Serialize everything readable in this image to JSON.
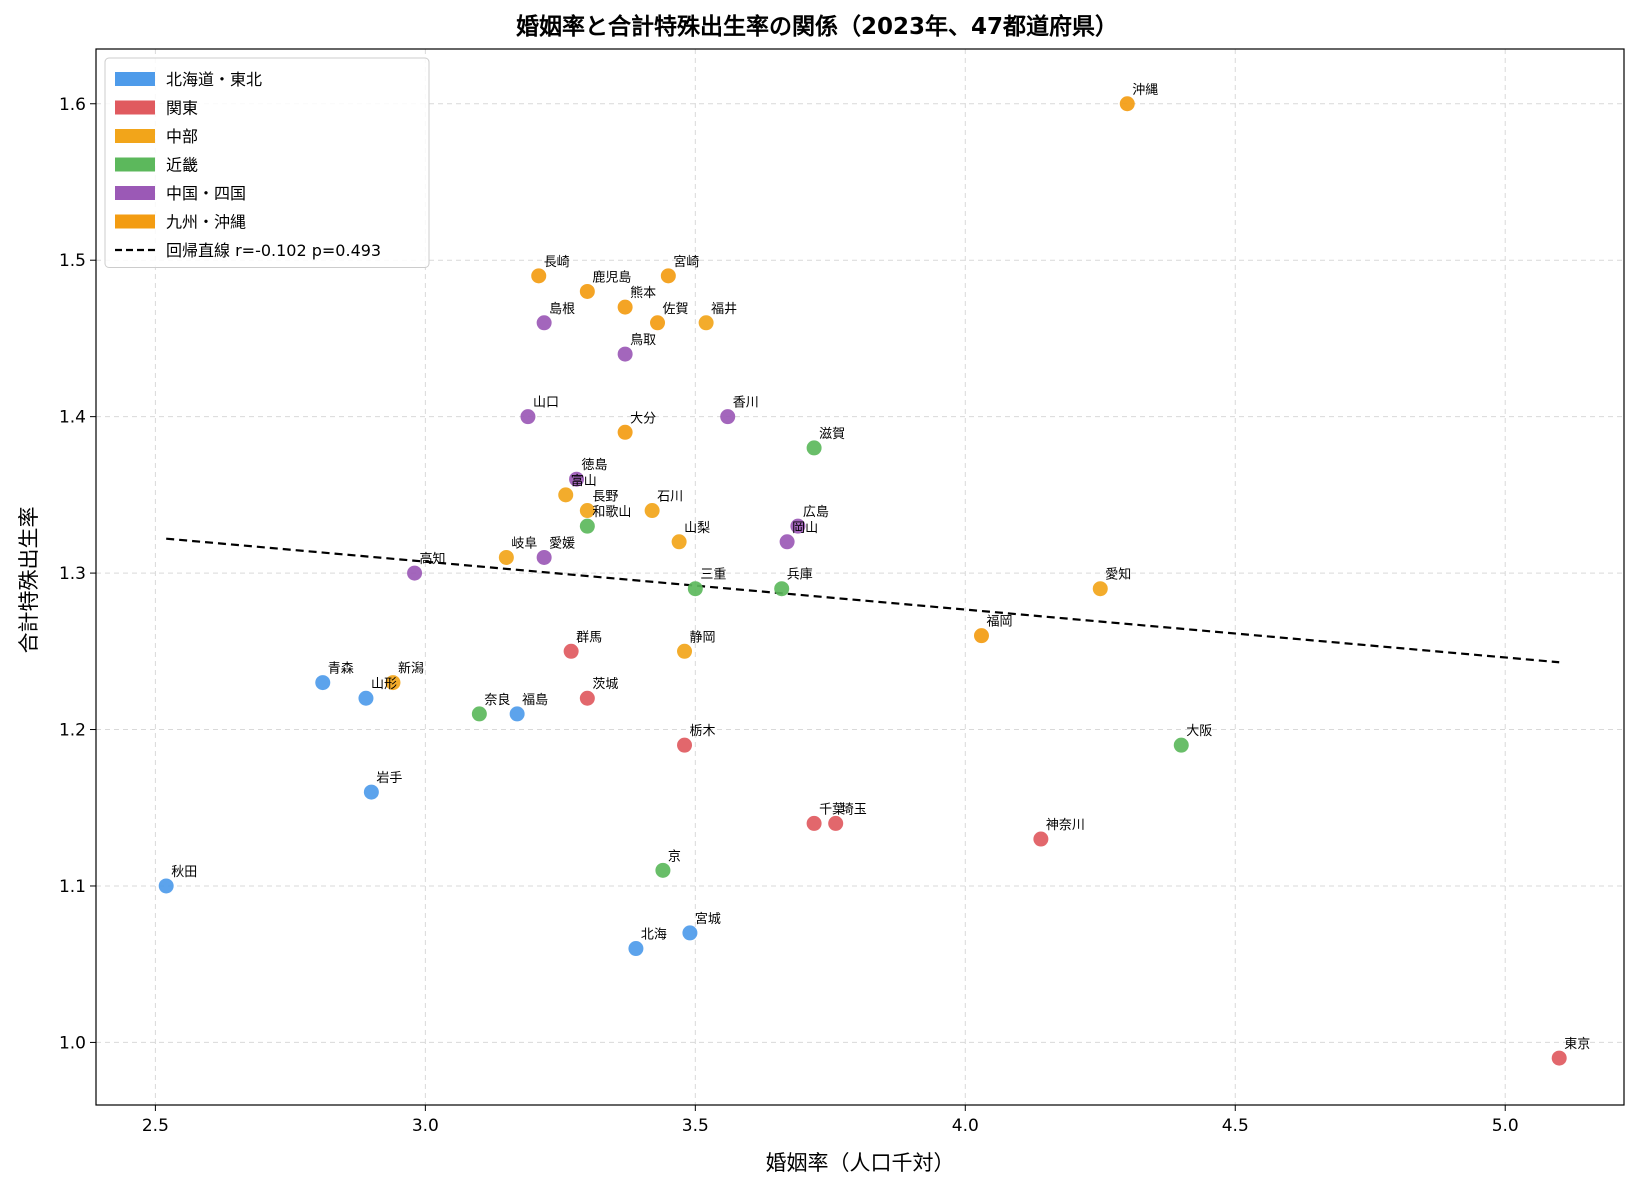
{
  "chart_data": {
    "type": "scatter",
    "title": "婚姻率と合計特殊出生率の関係（2023年、47都道府県）",
    "xlabel": "婚姻率（人口千対）",
    "ylabel": "合計特殊出生率",
    "xlim": [
      2.39,
      5.22
    ],
    "ylim": [
      0.96,
      1.635
    ],
    "xticks": [
      2.5,
      3.0,
      3.5,
      4.0,
      4.5,
      5.0
    ],
    "yticks": [
      1.0,
      1.1,
      1.2,
      1.3,
      1.4,
      1.5,
      1.6
    ],
    "xtick_labels": [
      "2.5",
      "3.0",
      "3.5",
      "4.0",
      "4.5",
      "5.0"
    ],
    "ytick_labels": [
      "1.0",
      "1.1",
      "1.2",
      "1.3",
      "1.4",
      "1.5",
      "1.6"
    ],
    "grid": true,
    "legend_position": "top-left",
    "regions": [
      {
        "key": "hokkaido_tohoku",
        "name": "北海道・東北",
        "color": "#4e9bea"
      },
      {
        "key": "kanto",
        "name": "関東",
        "color": "#e05a5f"
      },
      {
        "key": "chubu",
        "name": "中部",
        "color": "#f2a51a"
      },
      {
        "key": "kinki",
        "name": "近畿",
        "color": "#5cb85c"
      },
      {
        "key": "chugoku_shikoku",
        "name": "中国・四国",
        "color": "#9b59b6"
      },
      {
        "key": "kyushu_okinawa",
        "name": "九州・沖縄",
        "color": "#f39c12"
      }
    ],
    "regression": {
      "label": "回帰直線 r=-0.102  p=0.493",
      "x": [
        2.52,
        5.1
      ],
      "y": [
        1.322,
        1.243
      ]
    },
    "points": [
      {
        "label": "北海",
        "x": 3.39,
        "y": 1.06,
        "region": "hokkaido_tohoku"
      },
      {
        "label": "青森",
        "x": 2.81,
        "y": 1.23,
        "region": "hokkaido_tohoku"
      },
      {
        "label": "岩手",
        "x": 2.9,
        "y": 1.16,
        "region": "hokkaido_tohoku"
      },
      {
        "label": "宮城",
        "x": 3.49,
        "y": 1.07,
        "region": "hokkaido_tohoku"
      },
      {
        "label": "秋田",
        "x": 2.52,
        "y": 1.1,
        "region": "hokkaido_tohoku"
      },
      {
        "label": "山形",
        "x": 2.89,
        "y": 1.22,
        "region": "hokkaido_tohoku"
      },
      {
        "label": "福島",
        "x": 3.17,
        "y": 1.21,
        "region": "hokkaido_tohoku"
      },
      {
        "label": "茨城",
        "x": 3.3,
        "y": 1.22,
        "region": "kanto"
      },
      {
        "label": "栃木",
        "x": 3.48,
        "y": 1.19,
        "region": "kanto"
      },
      {
        "label": "群馬",
        "x": 3.27,
        "y": 1.25,
        "region": "kanto"
      },
      {
        "label": "埼玉",
        "x": 3.76,
        "y": 1.14,
        "region": "kanto"
      },
      {
        "label": "千葉",
        "x": 3.72,
        "y": 1.14,
        "region": "kanto"
      },
      {
        "label": "東京",
        "x": 5.1,
        "y": 0.99,
        "region": "kanto"
      },
      {
        "label": "神奈川",
        "x": 4.14,
        "y": 1.13,
        "region": "kanto"
      },
      {
        "label": "新潟",
        "x": 2.94,
        "y": 1.23,
        "region": "chubu"
      },
      {
        "label": "富山",
        "x": 3.26,
        "y": 1.35,
        "region": "chubu"
      },
      {
        "label": "石川",
        "x": 3.42,
        "y": 1.34,
        "region": "chubu"
      },
      {
        "label": "福井",
        "x": 3.52,
        "y": 1.46,
        "region": "chubu"
      },
      {
        "label": "山梨",
        "x": 3.47,
        "y": 1.32,
        "region": "chubu"
      },
      {
        "label": "長野",
        "x": 3.3,
        "y": 1.34,
        "region": "chubu"
      },
      {
        "label": "岐阜",
        "x": 3.15,
        "y": 1.31,
        "region": "chubu"
      },
      {
        "label": "静岡",
        "x": 3.48,
        "y": 1.25,
        "region": "chubu"
      },
      {
        "label": "愛知",
        "x": 4.25,
        "y": 1.29,
        "region": "chubu"
      },
      {
        "label": "三重",
        "x": 3.5,
        "y": 1.29,
        "region": "kinki"
      },
      {
        "label": "滋賀",
        "x": 3.72,
        "y": 1.38,
        "region": "kinki"
      },
      {
        "label": "京",
        "x": 3.44,
        "y": 1.11,
        "region": "kinki"
      },
      {
        "label": "大阪",
        "x": 4.4,
        "y": 1.19,
        "region": "kinki"
      },
      {
        "label": "兵庫",
        "x": 3.66,
        "y": 1.29,
        "region": "kinki"
      },
      {
        "label": "奈良",
        "x": 3.1,
        "y": 1.21,
        "region": "kinki"
      },
      {
        "label": "和歌山",
        "x": 3.3,
        "y": 1.33,
        "region": "kinki"
      },
      {
        "label": "鳥取",
        "x": 3.37,
        "y": 1.44,
        "region": "chugoku_shikoku"
      },
      {
        "label": "島根",
        "x": 3.22,
        "y": 1.46,
        "region": "chugoku_shikoku"
      },
      {
        "label": "岡山",
        "x": 3.67,
        "y": 1.32,
        "region": "chugoku_shikoku"
      },
      {
        "label": "広島",
        "x": 3.69,
        "y": 1.33,
        "region": "chugoku_shikoku"
      },
      {
        "label": "山口",
        "x": 3.19,
        "y": 1.4,
        "region": "chugoku_shikoku"
      },
      {
        "label": "徳島",
        "x": 3.28,
        "y": 1.36,
        "region": "chugoku_shikoku"
      },
      {
        "label": "香川",
        "x": 3.56,
        "y": 1.4,
        "region": "chugoku_shikoku"
      },
      {
        "label": "愛媛",
        "x": 3.22,
        "y": 1.31,
        "region": "chugoku_shikoku"
      },
      {
        "label": "高知",
        "x": 2.98,
        "y": 1.3,
        "region": "chugoku_shikoku"
      },
      {
        "label": "福岡",
        "x": 4.03,
        "y": 1.26,
        "region": "kyushu_okinawa"
      },
      {
        "label": "佐賀",
        "x": 3.43,
        "y": 1.46,
        "region": "kyushu_okinawa"
      },
      {
        "label": "長崎",
        "x": 3.21,
        "y": 1.49,
        "region": "kyushu_okinawa"
      },
      {
        "label": "熊本",
        "x": 3.37,
        "y": 1.47,
        "region": "kyushu_okinawa"
      },
      {
        "label": "大分",
        "x": 3.37,
        "y": 1.39,
        "region": "kyushu_okinawa"
      },
      {
        "label": "宮崎",
        "x": 3.45,
        "y": 1.49,
        "region": "kyushu_okinawa"
      },
      {
        "label": "鹿児島",
        "x": 3.3,
        "y": 1.48,
        "region": "kyushu_okinawa"
      },
      {
        "label": "沖縄",
        "x": 4.3,
        "y": 1.6,
        "region": "kyushu_okinawa"
      }
    ]
  }
}
